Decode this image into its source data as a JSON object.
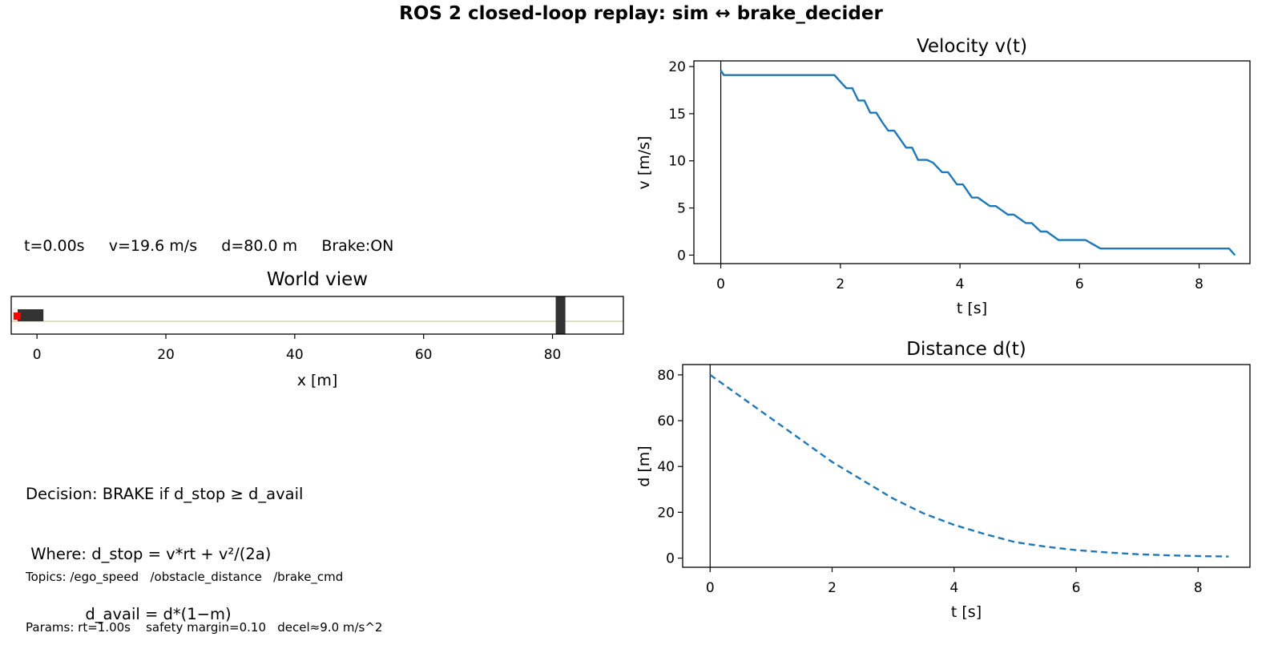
{
  "figure": {
    "suptitle": "ROS 2 closed-loop replay: sim ↔ brake_decider",
    "status": "t=0.00s     v=19.6 m/s     d=80.0 m     Brake:ON",
    "decision_lines": [
      "Decision: BRAKE if d_stop ≥ d_avail",
      " Where: d_stop = v*rt + v²/(2a)",
      "            d_avail = d*(1−m)"
    ],
    "topics_line": "Topics: /ego_speed   /obstacle_distance   /brake_cmd",
    "params_line": "Params: rt=1.00s    safety margin=0.10   decel≈9.0 m/s^2"
  },
  "colors": {
    "series": "#1f77b4",
    "ego": "#ff0000",
    "car": "#333333",
    "obstacle": "#333333",
    "road_line": "#b5c28a",
    "cursor": "#000000"
  },
  "chart_data": [
    {
      "id": "world",
      "type": "scatter",
      "title": "World view",
      "xlabel": "x [m]",
      "xlim": [
        -4,
        91
      ],
      "xticks": [
        0,
        20,
        40,
        60,
        80
      ],
      "ego_x": -3.4,
      "car_x": [
        -3,
        1
      ],
      "obstacle_x": [
        80.5,
        82.0
      ],
      "road_y": 0
    },
    {
      "id": "velocity",
      "type": "line",
      "title": "Velocity v(t)",
      "xlabel": "t [s]",
      "ylabel": "v [m/s]",
      "xlim": [
        -0.45,
        8.85
      ],
      "ylim": [
        -0.9,
        20.6
      ],
      "xticks": [
        0,
        2,
        4,
        6,
        8
      ],
      "yticks": [
        0,
        5,
        10,
        15,
        20
      ],
      "cursor_t": 0,
      "line_style": "solid",
      "series": [
        {
          "x": [
            0.0,
            0.05,
            1.9,
            2.0,
            2.1,
            2.2,
            2.3,
            2.4,
            2.5,
            2.6,
            2.7,
            2.8,
            2.9,
            3.0,
            3.1,
            3.2,
            3.3,
            3.45,
            3.55,
            3.7,
            3.8,
            3.95,
            4.05,
            4.2,
            4.3,
            4.5,
            4.6,
            4.8,
            4.9,
            5.1,
            5.2,
            5.35,
            5.45,
            5.65,
            5.75,
            6.0,
            6.1,
            6.35,
            6.45,
            6.85,
            6.95,
            7.05,
            7.15,
            8.5,
            8.6
          ],
          "y": [
            19.6,
            19.1,
            19.1,
            18.4,
            17.7,
            17.7,
            16.4,
            16.4,
            15.1,
            15.1,
            14.1,
            13.2,
            13.2,
            12.3,
            11.4,
            11.4,
            10.1,
            10.1,
            9.8,
            8.8,
            8.8,
            7.5,
            7.5,
            6.1,
            6.1,
            5.2,
            5.2,
            4.3,
            4.3,
            3.4,
            3.4,
            2.5,
            2.5,
            1.6,
            1.6,
            1.6,
            1.6,
            0.7,
            0.7,
            0.7,
            0.7,
            0.7,
            0.7,
            0.7,
            0.0
          ]
        }
      ]
    },
    {
      "id": "distance",
      "type": "line",
      "title": "Distance d(t)",
      "xlabel": "t [s]",
      "ylabel": "d [m]",
      "xlim": [
        -0.45,
        8.85
      ],
      "ylim": [
        -4,
        84.5
      ],
      "xticks": [
        0,
        2,
        4,
        6,
        8
      ],
      "yticks": [
        0,
        20,
        40,
        60,
        80
      ],
      "cursor_t": 0,
      "line_style": "dashed",
      "series": [
        {
          "x": [
            0.0,
            0.5,
            1.0,
            1.5,
            2.0,
            2.5,
            3.0,
            3.5,
            4.0,
            4.5,
            5.0,
            5.5,
            6.0,
            6.5,
            7.0,
            7.5,
            8.0,
            8.5
          ],
          "y": [
            80,
            70.5,
            61,
            51.5,
            42,
            34,
            26,
            19.5,
            14.5,
            10.5,
            7,
            5,
            3.5,
            2.5,
            1.7,
            1.2,
            0.9,
            0.7
          ]
        }
      ]
    }
  ]
}
